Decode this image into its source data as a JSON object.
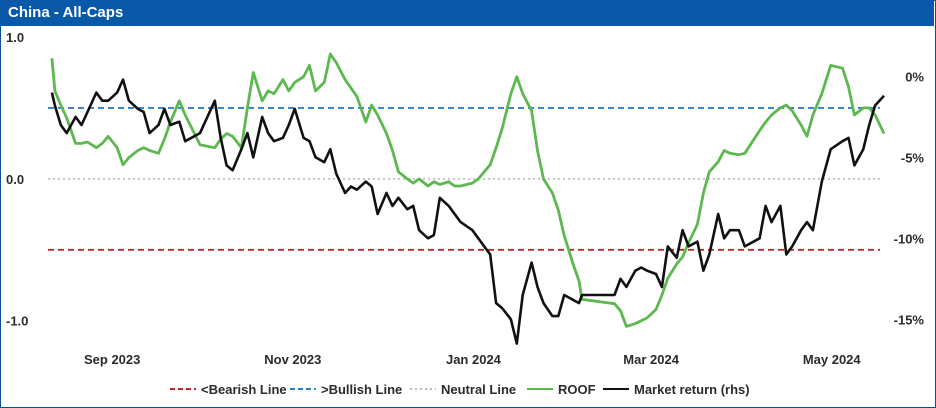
{
  "chart_data": {
    "type": "line",
    "title": "China - All-Caps",
    "x_range": [
      "2023-08-11",
      "2024-05-20"
    ],
    "x_tick_labels": [
      {
        "date": "2023-09-01",
        "label": "Sep 2023"
      },
      {
        "date": "2023-11-01",
        "label": "Nov 2023"
      },
      {
        "date": "2024-01-01",
        "label": "Jan 2024"
      },
      {
        "date": "2024-03-01",
        "label": "Mar 2024"
      },
      {
        "date": "2024-05-01",
        "label": "May 2024"
      }
    ],
    "y_left": {
      "range": [
        -1.15,
        1.0
      ],
      "ticks": [
        "1.0",
        "0.0",
        "-1.0"
      ],
      "tick_values": [
        1.0,
        0.0,
        -1.0
      ]
    },
    "y_right": {
      "range": [
        -0.164,
        0.0243
      ],
      "ticks": [
        "0%",
        "-5%",
        "-10%",
        "-15%"
      ],
      "tick_values": [
        0,
        -0.05,
        -0.1,
        -0.15
      ]
    },
    "reference_lines": [
      {
        "name": "<Bearish Line",
        "value": -0.5,
        "color": "#c0262d",
        "style": "dashed"
      },
      {
        "name": ">Bullish Line",
        "value": 0.5,
        "color": "#2f7fd0",
        "style": "dashed"
      },
      {
        "name": "Neutral Line",
        "value": 0.0,
        "color": "#b8b8b8",
        "style": "dotted"
      }
    ],
    "series": [
      {
        "name": "ROOF",
        "axis": "left",
        "color": "#5cb84f",
        "x": [
          "2023-08-13",
          "2023-08-14",
          "2023-08-16",
          "2023-08-18",
          "2023-08-21",
          "2023-08-23",
          "2023-08-25",
          "2023-08-28",
          "2023-08-30",
          "2023-09-01",
          "2023-09-04",
          "2023-09-06",
          "2023-09-08",
          "2023-09-11",
          "2023-09-13",
          "2023-09-15",
          "2023-09-18",
          "2023-09-20",
          "2023-09-22",
          "2023-09-25",
          "2023-09-27",
          "2023-10-02",
          "2023-10-07",
          "2023-10-09",
          "2023-10-11",
          "2023-10-13",
          "2023-10-16",
          "2023-10-18",
          "2023-10-20",
          "2023-10-23",
          "2023-10-25",
          "2023-10-27",
          "2023-10-30",
          "2023-11-01",
          "2023-11-03",
          "2023-11-06",
          "2023-11-08",
          "2023-11-10",
          "2023-11-13",
          "2023-11-15",
          "2023-11-17",
          "2023-11-20",
          "2023-11-22",
          "2023-11-24",
          "2023-11-27",
          "2023-11-29",
          "2023-12-01",
          "2023-12-04",
          "2023-12-06",
          "2023-12-08",
          "2023-12-11",
          "2023-12-13",
          "2023-12-15",
          "2023-12-18",
          "2023-12-20",
          "2023-12-22",
          "2023-12-25",
          "2023-12-27",
          "2023-12-29",
          "2024-01-02",
          "2024-01-04",
          "2024-01-08",
          "2024-01-10",
          "2024-01-12",
          "2024-01-15",
          "2024-01-17",
          "2024-01-19",
          "2024-01-22",
          "2024-01-24",
          "2024-01-26",
          "2024-01-29",
          "2024-01-31",
          "2024-02-02",
          "2024-02-05",
          "2024-02-07",
          "2024-02-08",
          "2024-02-19",
          "2024-02-21",
          "2024-02-23",
          "2024-02-26",
          "2024-02-28",
          "2024-03-01",
          "2024-03-04",
          "2024-03-06",
          "2024-03-08",
          "2024-03-11",
          "2024-03-13",
          "2024-03-15",
          "2024-03-18",
          "2024-03-20",
          "2024-03-22",
          "2024-03-25",
          "2024-03-27",
          "2024-03-29",
          "2024-04-01",
          "2024-04-03",
          "2024-04-08",
          "2024-04-10",
          "2024-04-12",
          "2024-04-15",
          "2024-04-17",
          "2024-04-19",
          "2024-04-22",
          "2024-04-24",
          "2024-04-26",
          "2024-04-29",
          "2024-05-02",
          "2024-05-06",
          "2024-05-08",
          "2024-05-10",
          "2024-05-13",
          "2024-05-15",
          "2024-05-17",
          "2024-05-20"
        ],
        "values": [
          0.85,
          0.62,
          0.52,
          0.43,
          0.25,
          0.25,
          0.26,
          0.22,
          0.25,
          0.3,
          0.22,
          0.1,
          0.15,
          0.2,
          0.22,
          0.2,
          0.18,
          0.28,
          0.4,
          0.55,
          0.45,
          0.24,
          0.22,
          0.28,
          0.32,
          0.3,
          0.22,
          0.5,
          0.75,
          0.55,
          0.62,
          0.6,
          0.7,
          0.62,
          0.68,
          0.72,
          0.8,
          0.62,
          0.68,
          0.88,
          0.82,
          0.7,
          0.64,
          0.58,
          0.4,
          0.52,
          0.45,
          0.32,
          0.2,
          0.05,
          0.0,
          -0.03,
          0.0,
          -0.05,
          -0.02,
          -0.04,
          -0.02,
          -0.05,
          -0.05,
          -0.03,
          0.0,
          0.1,
          0.22,
          0.35,
          0.6,
          0.72,
          0.6,
          0.48,
          0.2,
          0.0,
          -0.1,
          -0.22,
          -0.4,
          -0.6,
          -0.72,
          -0.85,
          -0.88,
          -0.93,
          -1.04,
          -1.02,
          -1.0,
          -0.98,
          -0.92,
          -0.82,
          -0.7,
          -0.6,
          -0.55,
          -0.45,
          -0.32,
          -0.1,
          0.05,
          0.12,
          0.2,
          0.18,
          0.17,
          0.18,
          0.34,
          0.4,
          0.45,
          0.5,
          0.52,
          0.48,
          0.38,
          0.3,
          0.45,
          0.6,
          0.8,
          0.78,
          0.65,
          0.45,
          0.5,
          0.5,
          0.45,
          0.32
        ]
      },
      {
        "name": "Market return (rhs)",
        "axis": "right",
        "color": "#111111",
        "x": [
          "2023-08-13",
          "2023-08-14",
          "2023-08-16",
          "2023-08-18",
          "2023-08-21",
          "2023-08-23",
          "2023-08-25",
          "2023-08-28",
          "2023-08-30",
          "2023-09-01",
          "2023-09-04",
          "2023-09-06",
          "2023-09-08",
          "2023-09-11",
          "2023-09-13",
          "2023-09-15",
          "2023-09-18",
          "2023-09-20",
          "2023-09-22",
          "2023-09-25",
          "2023-09-27",
          "2023-10-02",
          "2023-10-07",
          "2023-10-09",
          "2023-10-11",
          "2023-10-13",
          "2023-10-16",
          "2023-10-18",
          "2023-10-20",
          "2023-10-23",
          "2023-10-25",
          "2023-10-27",
          "2023-10-30",
          "2023-11-01",
          "2023-11-03",
          "2023-11-06",
          "2023-11-08",
          "2023-11-10",
          "2023-11-13",
          "2023-11-15",
          "2023-11-17",
          "2023-11-20",
          "2023-11-22",
          "2023-11-24",
          "2023-11-27",
          "2023-11-29",
          "2023-12-01",
          "2023-12-04",
          "2023-12-06",
          "2023-12-08",
          "2023-12-11",
          "2023-12-13",
          "2023-12-15",
          "2023-12-18",
          "2023-12-20",
          "2023-12-22",
          "2023-12-25",
          "2023-12-27",
          "2023-12-29",
          "2024-01-02",
          "2024-01-04",
          "2024-01-08",
          "2024-01-10",
          "2024-01-12",
          "2024-01-15",
          "2024-01-17",
          "2024-01-19",
          "2024-01-22",
          "2024-01-24",
          "2024-01-26",
          "2024-01-29",
          "2024-01-31",
          "2024-02-02",
          "2024-02-05",
          "2024-02-07",
          "2024-02-08",
          "2024-02-19",
          "2024-02-21",
          "2024-02-23",
          "2024-02-26",
          "2024-02-28",
          "2024-03-01",
          "2024-03-04",
          "2024-03-06",
          "2024-03-08",
          "2024-03-11",
          "2024-03-13",
          "2024-03-15",
          "2024-03-18",
          "2024-03-20",
          "2024-03-22",
          "2024-03-25",
          "2024-03-27",
          "2024-03-29",
          "2024-04-01",
          "2024-04-03",
          "2024-04-08",
          "2024-04-10",
          "2024-04-12",
          "2024-04-15",
          "2024-04-17",
          "2024-04-19",
          "2024-04-22",
          "2024-04-24",
          "2024-04-26",
          "2024-04-29",
          "2024-05-02",
          "2024-05-06",
          "2024-05-08",
          "2024-05-10",
          "2024-05-13",
          "2024-05-15",
          "2024-05-17",
          "2024-05-20"
        ],
        "values": [
          -0.01,
          -0.018,
          -0.03,
          -0.035,
          -0.025,
          -0.03,
          -0.022,
          -0.01,
          -0.015,
          -0.015,
          -0.01,
          -0.002,
          -0.015,
          -0.02,
          -0.022,
          -0.035,
          -0.03,
          -0.02,
          -0.03,
          -0.028,
          -0.04,
          -0.035,
          -0.015,
          -0.038,
          -0.055,
          -0.058,
          -0.045,
          -0.035,
          -0.05,
          -0.025,
          -0.035,
          -0.04,
          -0.038,
          -0.03,
          -0.02,
          -0.038,
          -0.04,
          -0.05,
          -0.053,
          -0.045,
          -0.06,
          -0.072,
          -0.068,
          -0.07,
          -0.065,
          -0.068,
          -0.085,
          -0.072,
          -0.08,
          -0.075,
          -0.082,
          -0.08,
          -0.095,
          -0.1,
          -0.098,
          -0.075,
          -0.08,
          -0.085,
          -0.09,
          -0.095,
          -0.1,
          -0.11,
          -0.14,
          -0.143,
          -0.15,
          -0.165,
          -0.135,
          -0.115,
          -0.13,
          -0.14,
          -0.148,
          -0.148,
          -0.135,
          -0.138,
          -0.14,
          -0.135,
          -0.135,
          -0.125,
          -0.13,
          -0.12,
          -0.118,
          -0.12,
          -0.122,
          -0.13,
          -0.105,
          -0.112,
          -0.095,
          -0.105,
          -0.102,
          -0.12,
          -0.11,
          -0.085,
          -0.1,
          -0.095,
          -0.095,
          -0.105,
          -0.1,
          -0.08,
          -0.09,
          -0.08,
          -0.11,
          -0.105,
          -0.095,
          -0.09,
          -0.095,
          -0.065,
          -0.045,
          -0.04,
          -0.038,
          -0.055,
          -0.045,
          -0.03,
          -0.018,
          -0.012
        ]
      }
    ],
    "legend": {
      "placement": "bottom",
      "items": [
        "<Bearish Line",
        ">Bullish Line",
        "Neutral Line",
        "ROOF",
        "Market return (rhs)"
      ]
    }
  }
}
